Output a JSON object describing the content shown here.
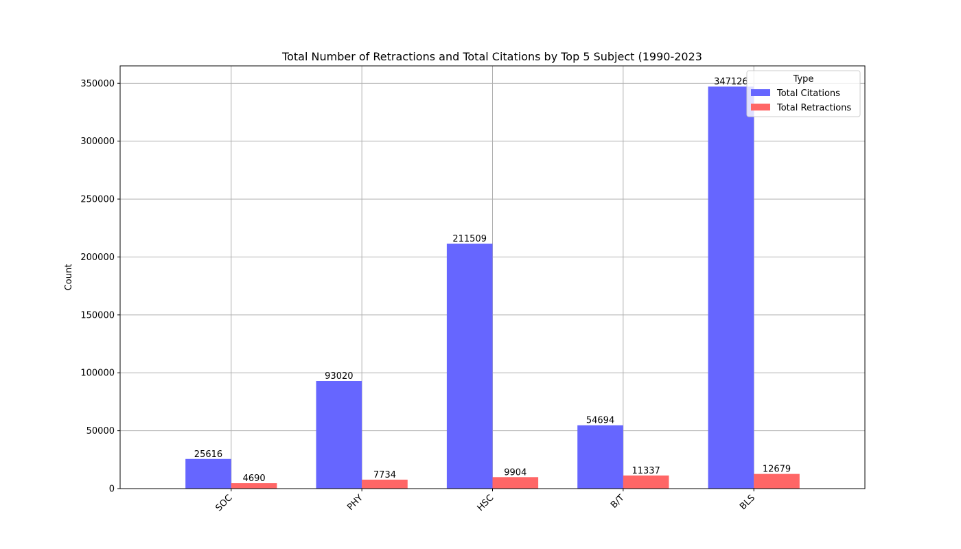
{
  "chart_data": {
    "type": "bar",
    "title": "Total Number of Retractions and Total Citations by Top 5 Subject (1990-2023",
    "xlabel": "",
    "ylabel": "Count",
    "categories": [
      "SOC",
      "PHY",
      "HSC",
      "B/T",
      "BLS"
    ],
    "series": [
      {
        "name": "Total Citations",
        "values": [
          25616,
          93020,
          211509,
          54694,
          347126
        ],
        "color": "#6666ff"
      },
      {
        "name": "Total Retractions",
        "values": [
          4690,
          7734,
          9904,
          11337,
          12679
        ],
        "color": "#ff6666"
      }
    ],
    "ylim": [
      0,
      365000
    ],
    "yticks": [
      0,
      50000,
      100000,
      150000,
      200000,
      250000,
      300000,
      350000
    ],
    "grid": true,
    "legend": {
      "title": "Type",
      "placement": "top-right"
    }
  }
}
